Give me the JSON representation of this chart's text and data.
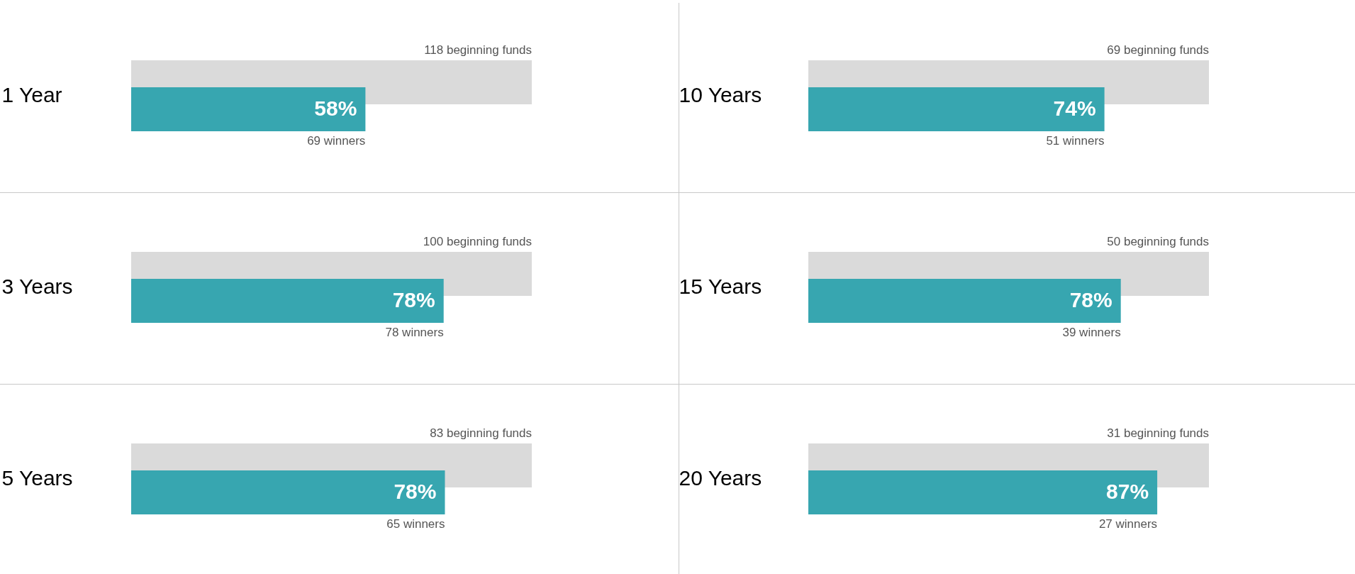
{
  "chart_data": [
    {
      "type": "bar",
      "orientation": "horizontal",
      "categories": [
        "1 Year"
      ],
      "series": [
        {
          "color": "#dadada",
          "values": [
            118
          ],
          "value_labels": [
            "118 beginning funds"
          ]
        },
        {
          "color": "#37a6b0",
          "values": [
            69
          ],
          "value_labels": [
            "69 winners"
          ]
        }
      ],
      "annotations": [
        {
          "text": "58%",
          "x": 69,
          "y": "1 Year"
        }
      ]
    },
    {
      "type": "bar",
      "orientation": "horizontal",
      "categories": [
        "10 Years"
      ],
      "series": [
        {
          "color": "#dadada",
          "values": [
            69
          ],
          "value_labels": [
            "69 beginning funds"
          ]
        },
        {
          "color": "#37a6b0",
          "values": [
            51
          ],
          "value_labels": [
            "51 winners"
          ]
        }
      ],
      "annotations": [
        {
          "text": "74%",
          "x": 51,
          "y": "10 Years"
        }
      ]
    },
    {
      "type": "bar",
      "orientation": "horizontal",
      "categories": [
        "3 Years"
      ],
      "series": [
        {
          "color": "#dadada",
          "values": [
            100
          ],
          "value_labels": [
            "100 beginning funds"
          ]
        },
        {
          "color": "#37a6b0",
          "values": [
            78
          ],
          "value_labels": [
            "78 winners"
          ]
        }
      ],
      "annotations": [
        {
          "text": "78%",
          "x": 78,
          "y": "3 Years"
        }
      ]
    },
    {
      "type": "bar",
      "orientation": "horizontal",
      "categories": [
        "15 Years"
      ],
      "series": [
        {
          "color": "#dadada",
          "values": [
            50
          ],
          "value_labels": [
            "50 beginning funds"
          ]
        },
        {
          "color": "#37a6b0",
          "values": [
            39
          ],
          "value_labels": [
            "39 winners"
          ]
        }
      ],
      "annotations": [
        {
          "text": "78%",
          "x": 39,
          "y": "15 Years"
        }
      ]
    },
    {
      "type": "bar",
      "orientation": "horizontal",
      "categories": [
        "5 Years"
      ],
      "series": [
        {
          "color": "#dadada",
          "values": [
            83
          ],
          "value_labels": [
            "83 beginning funds"
          ]
        },
        {
          "color": "#37a6b0",
          "values": [
            65
          ],
          "value_labels": [
            "65 winners"
          ]
        }
      ],
      "annotations": [
        {
          "text": "78%",
          "x": 65,
          "y": "5 Years"
        }
      ]
    },
    {
      "type": "bar",
      "orientation": "horizontal",
      "categories": [
        "20 Years"
      ],
      "series": [
        {
          "color": "#dadada",
          "values": [
            31
          ],
          "value_labels": [
            "31 beginning funds"
          ]
        },
        {
          "color": "#37a6b0",
          "values": [
            27
          ],
          "value_labels": [
            "27 winners"
          ]
        }
      ],
      "annotations": [
        {
          "text": "87%",
          "x": 27,
          "y": "20 Years"
        }
      ]
    }
  ]
}
